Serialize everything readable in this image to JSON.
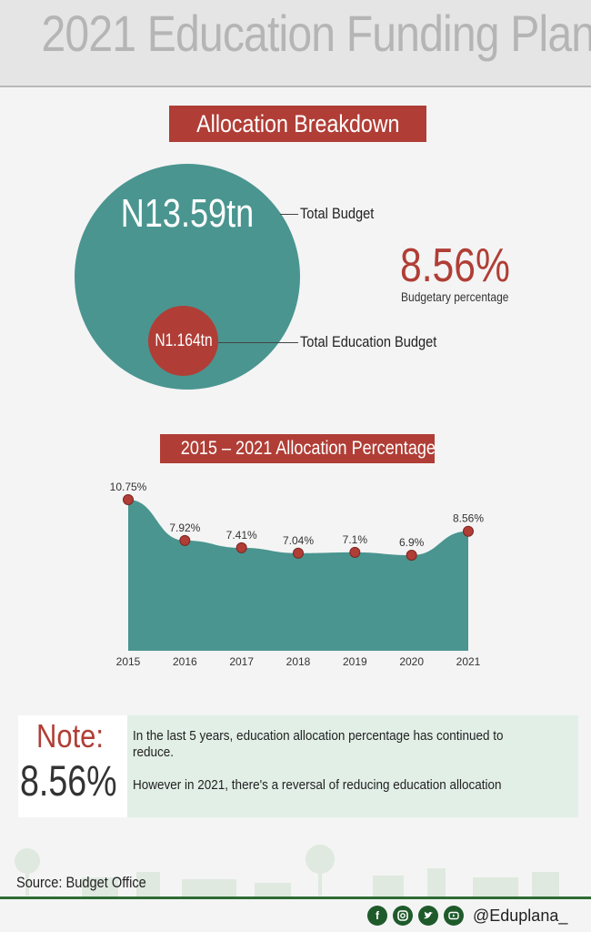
{
  "header": {
    "title": "2021 Education Funding Plan"
  },
  "breakdown": {
    "banner": "Allocation Breakdown",
    "total_value": "N13.59tn",
    "total_label": "Total Budget",
    "edu_value": "N1.164tn",
    "edu_label": "Total Education Budget",
    "pct": "8.56%",
    "pct_label": "Budgetary percentage"
  },
  "trend": {
    "banner": "2015 – 2021 Allocation Percentage"
  },
  "chart_data": {
    "type": "area",
    "title": "2015 – 2021 Allocation Percentage",
    "categories": [
      "2015",
      "2016",
      "2017",
      "2018",
      "2019",
      "2020",
      "2021"
    ],
    "values": [
      10.75,
      7.92,
      7.41,
      7.04,
      7.1,
      6.9,
      8.56
    ],
    "data_labels": [
      "10.75%",
      "7.92%",
      "7.41%",
      "7.04%",
      "7.1%",
      "6.9%",
      "8.56%"
    ],
    "xlabel": "",
    "ylabel": "",
    "grid": false,
    "colors": {
      "fill": "#4a9590",
      "marker": "#b03e36"
    }
  },
  "note": {
    "title": "Note:",
    "pct": "8.56%",
    "line1": "In the last 5 years, education allocation percentage has continued to reduce.",
    "line2": "However in 2021, there's a reversal of reducing education allocation"
  },
  "footer": {
    "source": "Source: Budget Office",
    "handle": "@Eduplana_",
    "icons": [
      "facebook-icon",
      "instagram-icon",
      "twitter-icon",
      "youtube-icon"
    ]
  },
  "colors": {
    "accent": "#b03e36",
    "teal": "#4a9590",
    "green": "#2e6b34"
  }
}
